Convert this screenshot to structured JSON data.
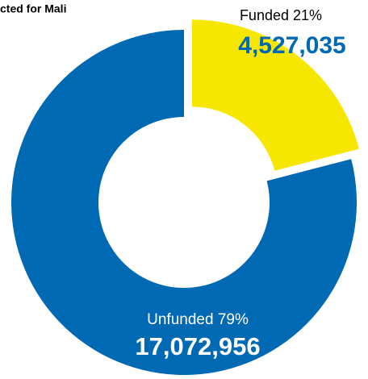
{
  "chart_data": {
    "type": "donut",
    "title": "cted for Mali",
    "categories": [
      "Funded",
      "Unfunded"
    ],
    "percent_labels": [
      "21%",
      "79%"
    ],
    "values": [
      4527035,
      17072956
    ],
    "value_labels": [
      "4,527,035",
      "17,072,956"
    ],
    "colors": [
      "#f7e600",
      "#0069b4"
    ],
    "exploded": [
      true,
      false
    ]
  }
}
